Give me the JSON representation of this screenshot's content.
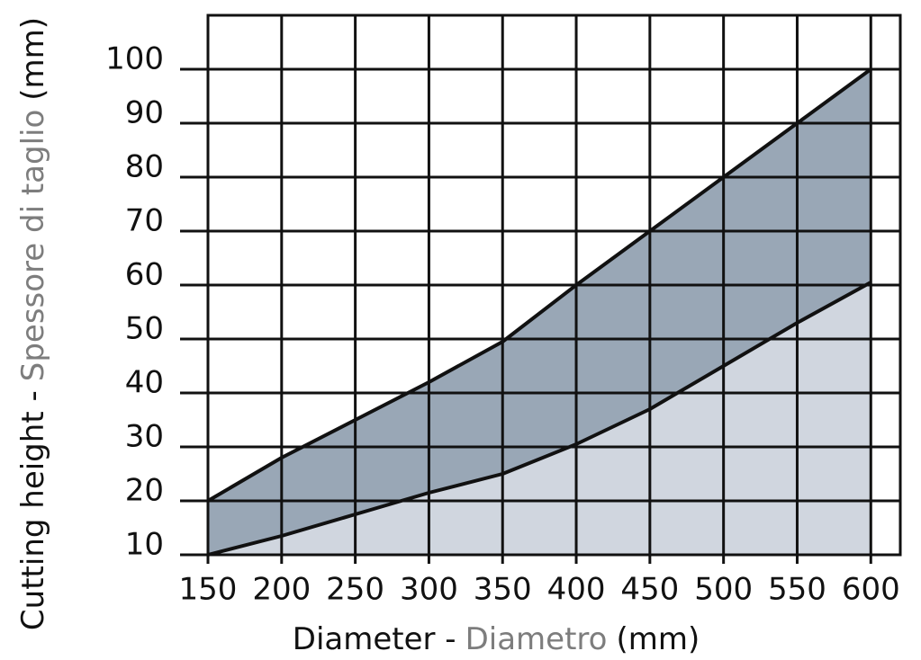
{
  "chart_data": {
    "type": "area",
    "ylabel": [
      "Cutting height -",
      "Spessore di taglio",
      "(mm)"
    ],
    "xlabel": [
      "Diameter -",
      "Diametro",
      "(mm)"
    ],
    "x": [
      150,
      200,
      250,
      300,
      350,
      400,
      450,
      500,
      550,
      600
    ],
    "series": [
      {
        "color": "#99a7b6",
        "values": [
          20,
          28,
          35,
          42,
          49.5,
          60,
          70,
          80,
          90,
          100
        ]
      },
      {
        "color": "#d0d6df",
        "values": [
          10,
          13.5,
          17.5,
          21.5,
          25,
          30.5,
          37,
          45,
          53,
          60.5
        ]
      }
    ],
    "xlim": [
      150,
      620
    ],
    "ylim": [
      10,
      110
    ],
    "xticks": [
      150,
      200,
      250,
      300,
      350,
      400,
      450,
      500,
      550,
      600
    ],
    "yticks": [
      10,
      20,
      30,
      40,
      50,
      60,
      70,
      80,
      90,
      100
    ],
    "grid": true
  }
}
